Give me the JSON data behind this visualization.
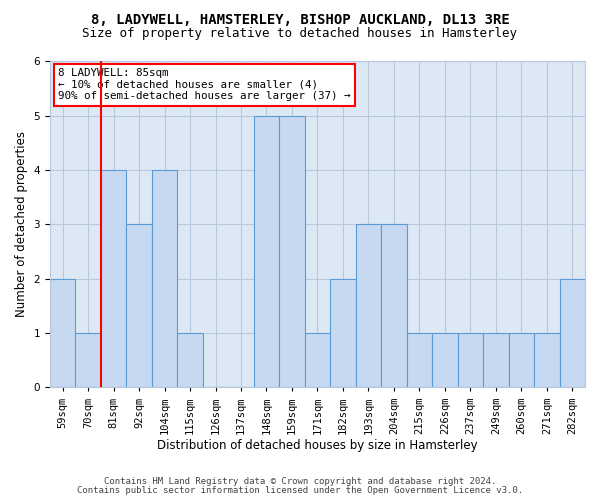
{
  "title1": "8, LADYWELL, HAMSTERLEY, BISHOP AUCKLAND, DL13 3RE",
  "title2": "Size of property relative to detached houses in Hamsterley",
  "xlabel": "Distribution of detached houses by size in Hamsterley",
  "ylabel": "Number of detached properties",
  "categories": [
    "59sqm",
    "70sqm",
    "81sqm",
    "92sqm",
    "104sqm",
    "115sqm",
    "126sqm",
    "137sqm",
    "148sqm",
    "159sqm",
    "171sqm",
    "182sqm",
    "193sqm",
    "204sqm",
    "215sqm",
    "226sqm",
    "237sqm",
    "249sqm",
    "260sqm",
    "271sqm",
    "282sqm"
  ],
  "values": [
    2,
    1,
    4,
    3,
    4,
    1,
    0,
    0,
    5,
    5,
    1,
    2,
    3,
    3,
    1,
    1,
    1,
    1,
    1,
    1,
    2
  ],
  "bar_color": "#c6d9f0",
  "bar_edge_color": "#5b9bd5",
  "red_line_x": 1.5,
  "annotation_line1": "8 LADYWELL: 85sqm",
  "annotation_line2": "← 10% of detached houses are smaller (4)",
  "annotation_line3": "90% of semi-detached houses are larger (37) →",
  "ylim_min": 0,
  "ylim_max": 6,
  "yticks": [
    0,
    1,
    2,
    3,
    4,
    5,
    6
  ],
  "footer1": "Contains HM Land Registry data © Crown copyright and database right 2024.",
  "footer2": "Contains public sector information licensed under the Open Government Licence v3.0.",
  "plot_bg_color": "#dde8f5",
  "fig_bg_color": "#ffffff",
  "grid_color": "#b8c8dc",
  "title_fontsize": 10,
  "subtitle_fontsize": 9,
  "axis_label_fontsize": 8.5,
  "tick_fontsize": 7.5,
  "footer_fontsize": 6.5,
  "ann_fontsize": 7.8
}
